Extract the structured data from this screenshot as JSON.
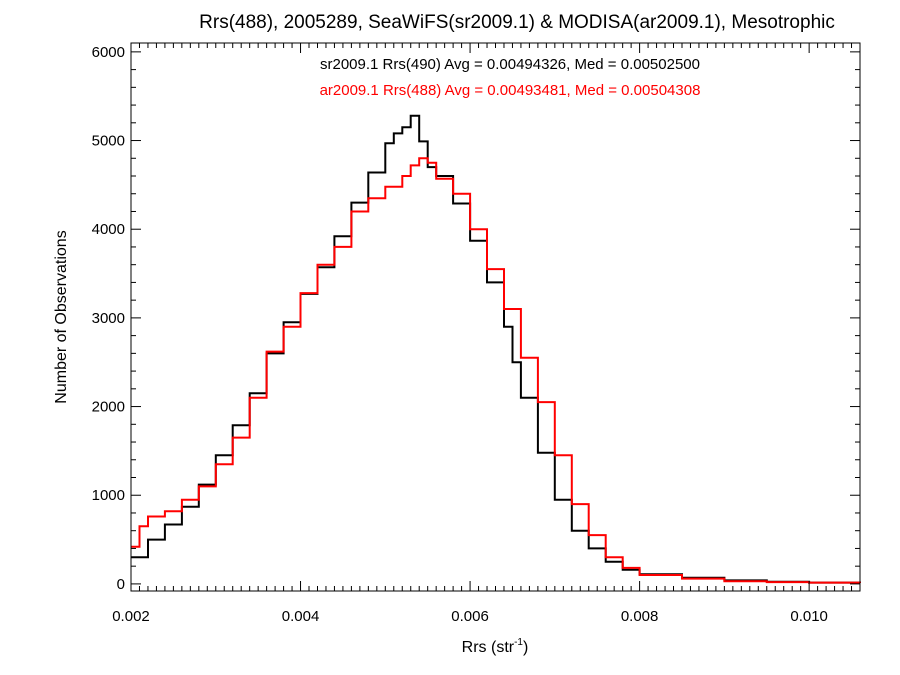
{
  "chart_data": {
    "type": "line",
    "title": "Rrs(488), 2005289, SeaWiFS(sr2009.1) & MODISA(ar2009.1), Mesotrophic",
    "xlabel_main": "Rrs (str",
    "xlabel_sup": "-1",
    "xlabel_end": ")",
    "ylabel": "Number of Observations",
    "xlim": [
      0.002,
      0.0106
    ],
    "ylim": [
      -80,
      6100
    ],
    "xticks": [
      0.002,
      0.004,
      0.006,
      0.008,
      0.01
    ],
    "xtick_labels": [
      "0.002",
      "0.004",
      "0.006",
      "0.008",
      "0.010"
    ],
    "yticks": [
      0,
      1000,
      2000,
      3000,
      4000,
      5000,
      6000
    ],
    "ytick_labels": [
      "0",
      "1000",
      "2000",
      "3000",
      "4000",
      "5000",
      "6000"
    ],
    "grid": false,
    "annotations": [
      {
        "text": "sr2009.1 Rrs(490) Avg = 0.00494326, Med = 0.00502500",
        "color": "#000000"
      },
      {
        "text": "ar2009.1 Rrs(488) Avg = 0.00493481, Med = 0.00504308",
        "color": "#ff0000"
      }
    ],
    "series": [
      {
        "name": "sr2009.1 Rrs(490)",
        "color": "#000000",
        "step": "histogram",
        "x": [
          0.002,
          0.0022,
          0.0024,
          0.0026,
          0.0028,
          0.003,
          0.0032,
          0.0034,
          0.0036,
          0.0038,
          0.004,
          0.0042,
          0.0044,
          0.0046,
          0.0048,
          0.005,
          0.0051,
          0.0052,
          0.0053,
          0.0054,
          0.0055,
          0.0056,
          0.0058,
          0.006,
          0.0062,
          0.0064,
          0.0065,
          0.0066,
          0.0068,
          0.007,
          0.0072,
          0.0074,
          0.0076,
          0.0078,
          0.008,
          0.0085,
          0.009,
          0.0095,
          0.01,
          0.0106
        ],
        "y": [
          300,
          500,
          670,
          870,
          1120,
          1450,
          1790,
          2150,
          2600,
          2950,
          3270,
          3570,
          3920,
          4300,
          4640,
          4970,
          5080,
          5150,
          5280,
          4990,
          4700,
          4600,
          4290,
          3870,
          3400,
          2900,
          2500,
          2100,
          1480,
          950,
          600,
          400,
          250,
          160,
          110,
          70,
          40,
          25,
          15,
          10
        ]
      },
      {
        "name": "ar2009.1 Rrs(488)",
        "color": "#ff0000",
        "step": "histogram",
        "x": [
          0.002,
          0.0021,
          0.0022,
          0.0024,
          0.0026,
          0.0028,
          0.003,
          0.0032,
          0.0034,
          0.0036,
          0.0038,
          0.004,
          0.0042,
          0.0044,
          0.0046,
          0.0048,
          0.005,
          0.0052,
          0.0053,
          0.0054,
          0.0055,
          0.0056,
          0.0058,
          0.006,
          0.0062,
          0.0064,
          0.0066,
          0.0068,
          0.007,
          0.0072,
          0.0074,
          0.0076,
          0.0078,
          0.008,
          0.0085,
          0.009,
          0.0095,
          0.01,
          0.0106
        ],
        "y": [
          420,
          650,
          760,
          820,
          950,
          1100,
          1350,
          1650,
          2100,
          2620,
          2900,
          3280,
          3600,
          3800,
          4200,
          4350,
          4480,
          4600,
          4720,
          4800,
          4750,
          4570,
          4400,
          4000,
          3550,
          3100,
          2550,
          2050,
          1450,
          900,
          550,
          300,
          180,
          100,
          60,
          30,
          20,
          15,
          10
        ]
      }
    ]
  }
}
